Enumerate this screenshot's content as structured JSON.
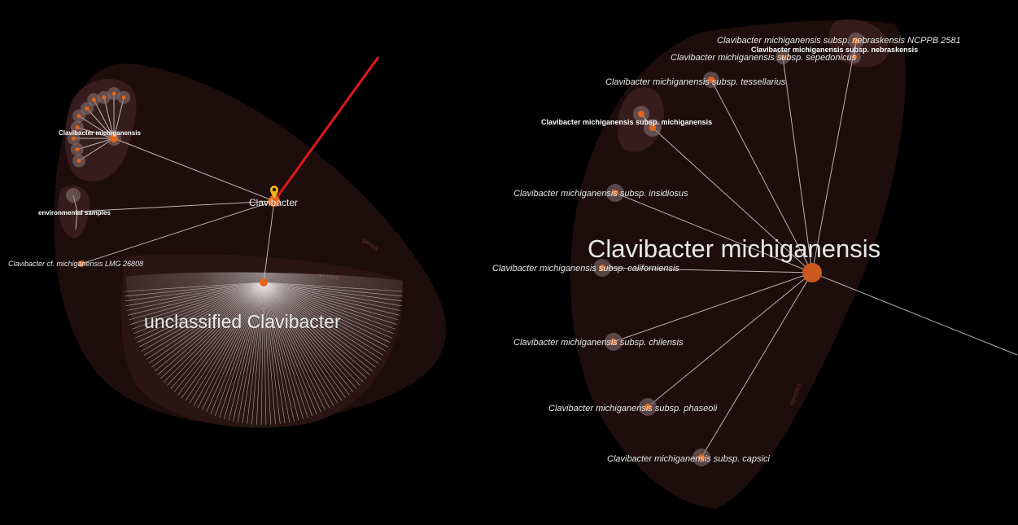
{
  "left_panel": {
    "root": {
      "label": "Clavibacter"
    },
    "rank_labels": {
      "genus": "genus",
      "no_rank": "no rank"
    },
    "children": {
      "species_cluster": {
        "label": "Clavibacter michiganensis",
        "leaf_count": 10
      },
      "env": {
        "label": "environmental samples"
      },
      "strain": {
        "label": "Clavibacter cf. michiganensis LMG 26808"
      },
      "unclassified": {
        "label": "unclassified Clavibacter",
        "fan_line_count": 90
      }
    },
    "pin_color": "#f2b61b",
    "highlight_edge_color": "#e01818"
  },
  "right_panel": {
    "center": {
      "label": "Clavibacter michiganensis"
    },
    "rank_label": "species",
    "subspecies": [
      {
        "label": "Clavibacter michiganensis subsp. nebraskensis NCPPB 2581",
        "style": "italic"
      },
      {
        "label": "Clavibacter michiganensis subsp. nebraskensis",
        "style": "bold"
      },
      {
        "label": "Clavibacter michiganensis subsp. sepedonicus",
        "style": "italic"
      },
      {
        "label": "Clavibacter michiganensis subsp. tessellarius",
        "style": "italic"
      },
      {
        "label": "Clavibacter michiganensis subsp. michiganensis",
        "style": "bold"
      },
      {
        "label": "Clavibacter michiganensis subsp. insidiosus",
        "style": "italic"
      },
      {
        "label": "Clavibacter michiganensis subsp. californiensis",
        "style": "italic"
      },
      {
        "label": "Clavibacter michiganensis subsp. chilensis",
        "style": "italic"
      },
      {
        "label": "Clavibacter michiganensis subsp. phaseoli",
        "style": "italic"
      },
      {
        "label": "Clavibacter michiganensis subsp. capsici",
        "style": "italic"
      }
    ]
  },
  "colors": {
    "background": "#000000",
    "region_fill": "#2a1414",
    "node_core": "#e0651d",
    "node_halo": "#8a7777",
    "edge": "#d8cfcf"
  }
}
